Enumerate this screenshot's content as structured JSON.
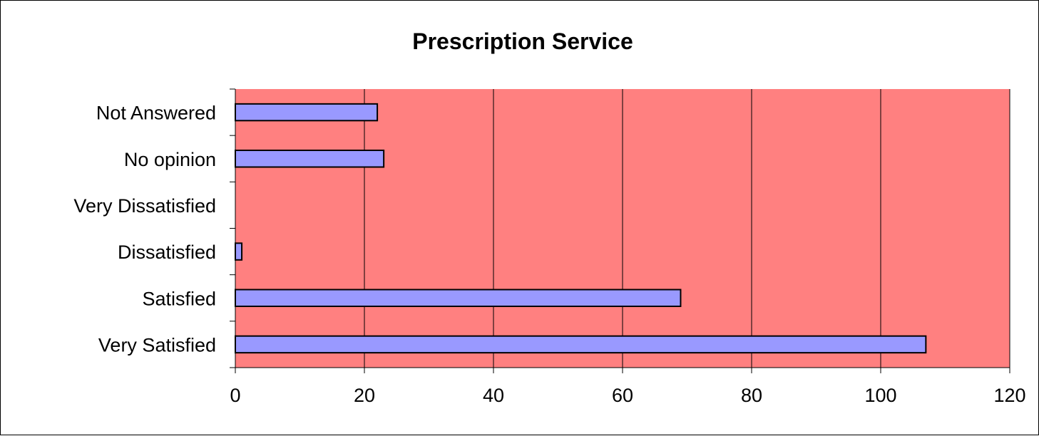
{
  "chart_data": {
    "type": "bar",
    "orientation": "horizontal",
    "title": "Prescription Service",
    "xlabel": "",
    "ylabel": "",
    "categories": [
      "Not Answered",
      "No opinion",
      "Very Dissatisfied",
      "Dissatisfied",
      "Satisfied",
      "Very Satisfied"
    ],
    "values": [
      22,
      23,
      0,
      1,
      69,
      107
    ],
    "xlim": [
      0,
      120
    ],
    "x_ticks": [
      0,
      20,
      40,
      60,
      80,
      100,
      120
    ],
    "grid": "vertical",
    "legend": "none",
    "colors": {
      "plot_background": "#ff8080",
      "bar_fill": "#9999ff",
      "bar_stroke": "#000000",
      "gridline": "#000000"
    }
  }
}
